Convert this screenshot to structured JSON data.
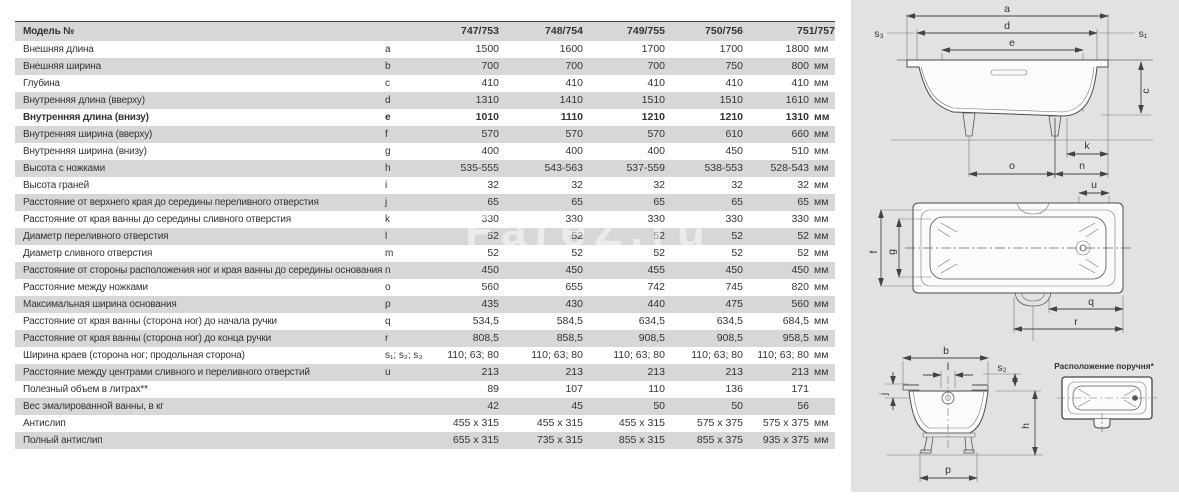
{
  "table": {
    "header": {
      "label": "Модель №",
      "models": [
        "747/753",
        "748/754",
        "749/755",
        "750/756",
        "751/757"
      ]
    },
    "rows": [
      {
        "label": "Внешняя длина",
        "letter": "a",
        "values": [
          "1500",
          "1600",
          "1700",
          "1700",
          "1800"
        ],
        "unit": "мм"
      },
      {
        "label": "Внешняя ширина",
        "letter": "b",
        "values": [
          "700",
          "700",
          "700",
          "750",
          "800"
        ],
        "unit": "мм"
      },
      {
        "label": "Глубина",
        "letter": "c",
        "values": [
          "410",
          "410",
          "410",
          "410",
          "410"
        ],
        "unit": "мм"
      },
      {
        "label": "Внутренняя длина (вверху)",
        "letter": "d",
        "values": [
          "1310",
          "1410",
          "1510",
          "1510",
          "1610"
        ],
        "unit": "мм"
      },
      {
        "label": "Внутренняя длина (внизу)",
        "letter": "e",
        "values": [
          "1010",
          "1110",
          "1210",
          "1210",
          "1310"
        ],
        "unit": "мм",
        "bold": true
      },
      {
        "label": "Внутренняя ширина (вверху)",
        "letter": "f",
        "values": [
          "570",
          "570",
          "570",
          "610",
          "660"
        ],
        "unit": "мм"
      },
      {
        "label": "Внутренняя ширина (внизу)",
        "letter": "g",
        "values": [
          "400",
          "400",
          "400",
          "450",
          "510"
        ],
        "unit": "мм"
      },
      {
        "label": "Высота с ножками",
        "letter": "h",
        "values": [
          "535-555",
          "543-563",
          "537-559",
          "538-553",
          "528-543"
        ],
        "unit": "мм"
      },
      {
        "label": "Высота граней",
        "letter": "i",
        "values": [
          "32",
          "32",
          "32",
          "32",
          "32"
        ],
        "unit": "мм"
      },
      {
        "label": "Расстояние от верхнего края до середины переливного отверстия",
        "letter": "j",
        "values": [
          "65",
          "65",
          "65",
          "65",
          "65"
        ],
        "unit": "мм"
      },
      {
        "label": "Расстояние от края ванны до середины сливного отверстия",
        "letter": "k",
        "values": [
          "330",
          "330",
          "330",
          "330",
          "330"
        ],
        "unit": "мм"
      },
      {
        "label": "Диаметр переливного отверстия",
        "letter": "l",
        "values": [
          "52",
          "52",
          "52",
          "52",
          "52"
        ],
        "unit": "мм"
      },
      {
        "label": "Диаметр сливного отверстия",
        "letter": "m",
        "values": [
          "52",
          "52",
          "52",
          "52",
          "52"
        ],
        "unit": "мм"
      },
      {
        "label": "Расстояние от стороны расположения ног и края ванны до середины основания",
        "letter": "n",
        "values": [
          "450",
          "450",
          "455",
          "450",
          "450"
        ],
        "unit": "мм"
      },
      {
        "label": "Расстояние между ножками",
        "letter": "o",
        "values": [
          "560",
          "655",
          "742",
          "745",
          "820"
        ],
        "unit": "мм"
      },
      {
        "label": "Максимальная ширина основания",
        "letter": "p",
        "values": [
          "435",
          "430",
          "440",
          "475",
          "560"
        ],
        "unit": "мм"
      },
      {
        "label": "Расстояние от края ванны (сторона ног) до начала ручки",
        "letter": "q",
        "values": [
          "534,5",
          "584,5",
          "634,5",
          "634,5",
          "684,5"
        ],
        "unit": "мм"
      },
      {
        "label": "Расстояние от края ванны (сторона ног) до конца ручки",
        "letter": "r",
        "values": [
          "808,5",
          "858,5",
          "908,5",
          "908,5",
          "958,5"
        ],
        "unit": "мм"
      },
      {
        "label": "Ширина краев (сторона ног; продольная сторона)",
        "letter": "s₁; s₂; s₃",
        "values": [
          "110; 63; 80",
          "110; 63; 80",
          "110; 63; 80",
          "110; 63; 80",
          "110; 63; 80"
        ],
        "unit": "мм"
      },
      {
        "label": "Расстояние между центрами сливного и переливного отверстий",
        "letter": "u",
        "values": [
          "213",
          "213",
          "213",
          "213",
          "213"
        ],
        "unit": "мм"
      },
      {
        "label": "Полезный объем в литрах**",
        "letter": "",
        "values": [
          "89",
          "107",
          "110",
          "136",
          "171"
        ],
        "unit": ""
      },
      {
        "label": "Вес эмалированной ванны, в кг",
        "letter": "",
        "values": [
          "42",
          "45",
          "50",
          "50",
          "56"
        ],
        "unit": ""
      },
      {
        "label": "Антислип",
        "letter": "",
        "values": [
          "455 x 315",
          "455 x 315",
          "455 x 315",
          "575 x 375",
          "575 x 375"
        ],
        "unit": "мм"
      },
      {
        "label": "Полный антислип",
        "letter": "",
        "values": [
          "655 x 315",
          "735 x 315",
          "855 x 315",
          "855 x 375",
          "935 x 375"
        ],
        "unit": "мм"
      }
    ]
  },
  "diagrams": {
    "caption": "Расположение поручня*",
    "labels": {
      "a": "a",
      "b": "b",
      "c": "c",
      "d": "d",
      "e": "e",
      "f": "f",
      "g": "g",
      "h": "h",
      "j": "j",
      "k": "k",
      "l": "l",
      "n": "n",
      "o": "o",
      "p": "p",
      "q": "q",
      "r": "r",
      "u": "u",
      "s1": "s₁",
      "s2": "s₂",
      "s3": "s₃"
    }
  },
  "watermark": "FareZ.ru"
}
